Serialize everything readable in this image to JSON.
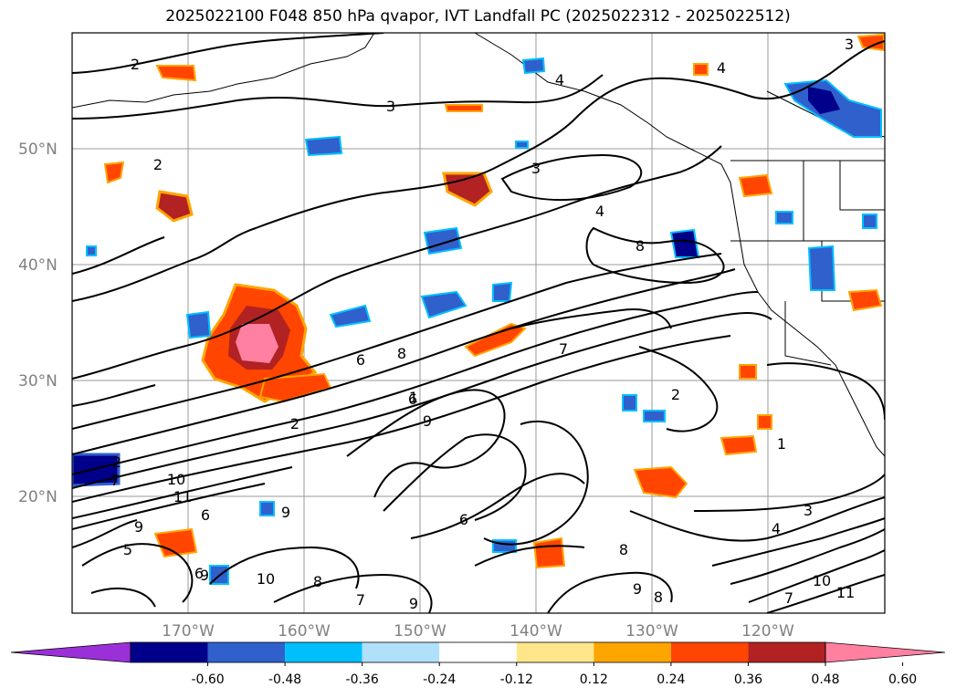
{
  "title": "2025022100 F048 850 hPa qvapor, IVT Landfall PC (2025022312 - 2025022512)",
  "lat_labels": [
    "50°N",
    "40°N",
    "30°N",
    "20°N"
  ],
  "lon_labels": [
    "170°W",
    "160°W",
    "150°W",
    "140°W",
    "130°W",
    "120°W"
  ],
  "colorbar": {
    "colors": [
      "#9b30d9",
      "#00008b",
      "#3060cc",
      "#00bfff",
      "#b0e0fa",
      "#ffffff",
      "#ffe68a",
      "#ffa500",
      "#ff4500",
      "#b22222",
      "#ff80a0"
    ],
    "ticks": [
      "-0.60",
      "-0.48",
      "-0.36",
      "-0.24",
      "-0.12",
      "0.12",
      "0.24",
      "0.36",
      "0.48",
      "0.60"
    ]
  },
  "contour_labels": [
    "2",
    "3",
    "2",
    "3",
    "4",
    "3",
    "4",
    "8",
    "4",
    "6",
    "8",
    "2",
    "6",
    "9",
    "7",
    "6",
    "2",
    "7",
    "10",
    "11",
    "6",
    "9",
    "9",
    "8",
    "8",
    "7",
    "10",
    "9",
    "8",
    "7",
    "9",
    "9",
    "10",
    "11",
    "4",
    "3",
    "2",
    "1",
    "1",
    "6",
    "5"
  ]
}
